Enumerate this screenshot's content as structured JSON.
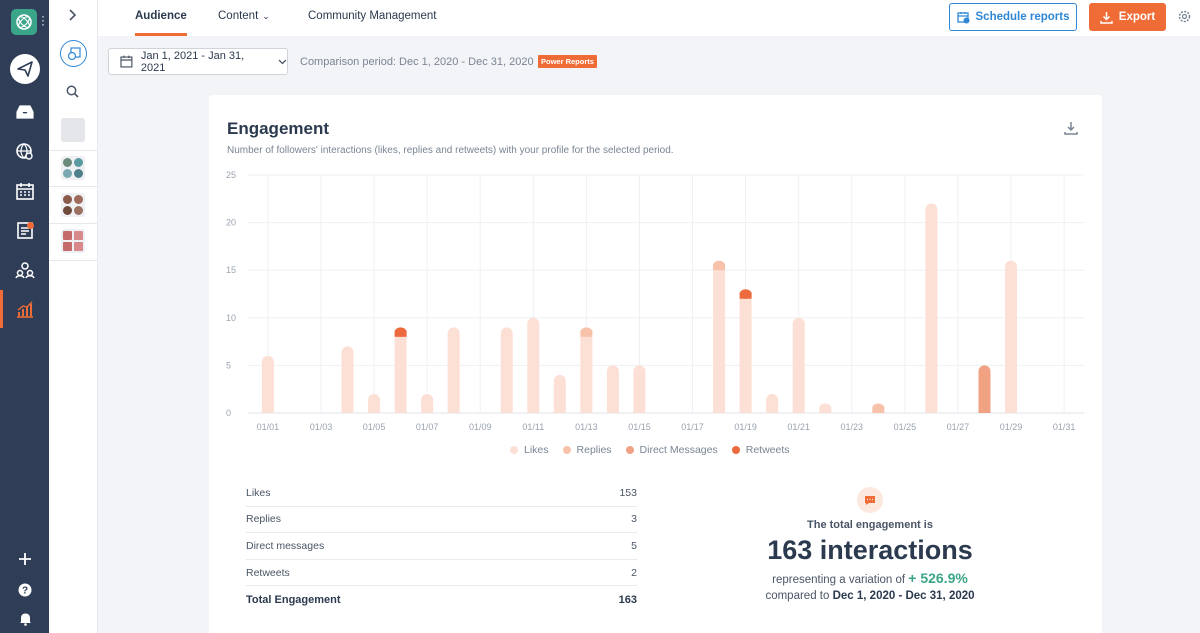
{
  "nav": {
    "icons": [
      "logo-icon",
      "publish-icon",
      "inbox-icon",
      "listening-icon",
      "calendar-icon",
      "tasks-icon",
      "community-icon",
      "analytics-icon",
      "add-icon",
      "help-icon",
      "bell-icon"
    ],
    "accent": "#f06c36",
    "background": "#2f3e56"
  },
  "tabs": [
    {
      "label": "Audience",
      "active": true
    },
    {
      "label": "Content",
      "dropdown": true
    },
    {
      "label": "Community Management"
    }
  ],
  "toolbar": {
    "schedule_label": "Schedule reports",
    "export_label": "Export"
  },
  "filters": {
    "date_range": "Jan 1, 2021 - Jan 31, 2021",
    "comparison": "Comparison period: Dec 1, 2020 - Dec 31, 2020",
    "badge": "Power Reports"
  },
  "card": {
    "title": "Engagement",
    "subtitle": "Number of followers' interactions (likes, replies and retweets) with your profile for the selected period."
  },
  "chart_data": {
    "type": "bar",
    "stacked": true,
    "ylim": [
      0,
      25
    ],
    "y_ticks": [
      0,
      5,
      10,
      15,
      20,
      25
    ],
    "x_ticks": [
      "01/01",
      "01/03",
      "01/05",
      "01/07",
      "01/09",
      "01/11",
      "01/13",
      "01/15",
      "01/17",
      "01/19",
      "01/21",
      "01/23",
      "01/25",
      "01/27",
      "01/29",
      "01/31"
    ],
    "categories": [
      "01/01",
      "01/02",
      "01/03",
      "01/04",
      "01/05",
      "01/06",
      "01/07",
      "01/08",
      "01/09",
      "01/10",
      "01/11",
      "01/12",
      "01/13",
      "01/14",
      "01/15",
      "01/16",
      "01/17",
      "01/18",
      "01/19",
      "01/20",
      "01/21",
      "01/22",
      "01/23",
      "01/24",
      "01/25",
      "01/26",
      "01/27",
      "01/28",
      "01/29",
      "01/30",
      "01/31"
    ],
    "series": [
      {
        "name": "Likes",
        "color": "#fde0d5",
        "values": [
          6,
          0,
          0,
          7,
          2,
          8,
          2,
          9,
          0,
          9,
          10,
          4,
          8,
          5,
          5,
          0,
          0,
          15,
          12,
          2,
          10,
          1,
          0,
          0,
          0,
          22,
          0,
          0,
          16,
          0,
          0
        ]
      },
      {
        "name": "Replies",
        "color": "#f8c2aa",
        "values": [
          0,
          0,
          0,
          0,
          0,
          0,
          0,
          0,
          0,
          0,
          0,
          0,
          1,
          0,
          0,
          0,
          0,
          1,
          0,
          0,
          0,
          0,
          0,
          1,
          0,
          0,
          0,
          0,
          0,
          0,
          0
        ]
      },
      {
        "name": "Direct Messages",
        "color": "#f1a283",
        "values": [
          0,
          0,
          0,
          0,
          0,
          0,
          0,
          0,
          0,
          0,
          0,
          0,
          0,
          0,
          0,
          0,
          0,
          0,
          0,
          0,
          0,
          0,
          0,
          0,
          0,
          0,
          0,
          5,
          0,
          0,
          0
        ]
      },
      {
        "name": "Retweets",
        "color": "#ec6a3d",
        "values": [
          0,
          0,
          0,
          0,
          0,
          1,
          0,
          0,
          0,
          0,
          0,
          0,
          0,
          0,
          0,
          0,
          0,
          0,
          1,
          0,
          0,
          0,
          0,
          0,
          0,
          0,
          0,
          0,
          0,
          0,
          0
        ]
      }
    ],
    "legend": "bottom-center",
    "grid": true
  },
  "stats": [
    {
      "label": "Likes",
      "value": "153"
    },
    {
      "label": "Replies",
      "value": "3"
    },
    {
      "label": "Direct messages",
      "value": "5"
    },
    {
      "label": "Retweets",
      "value": "2"
    }
  ],
  "stats_total": {
    "label": "Total Engagement",
    "value": "163"
  },
  "summary": {
    "line1": "The total engagement is",
    "big": "163 interactions",
    "line3_prefix": "representing a variation of",
    "variation": "+ 526.9%",
    "line4_prefix": "compared to",
    "line4_period": "Dec 1, 2020 - Dec 31, 2020"
  }
}
